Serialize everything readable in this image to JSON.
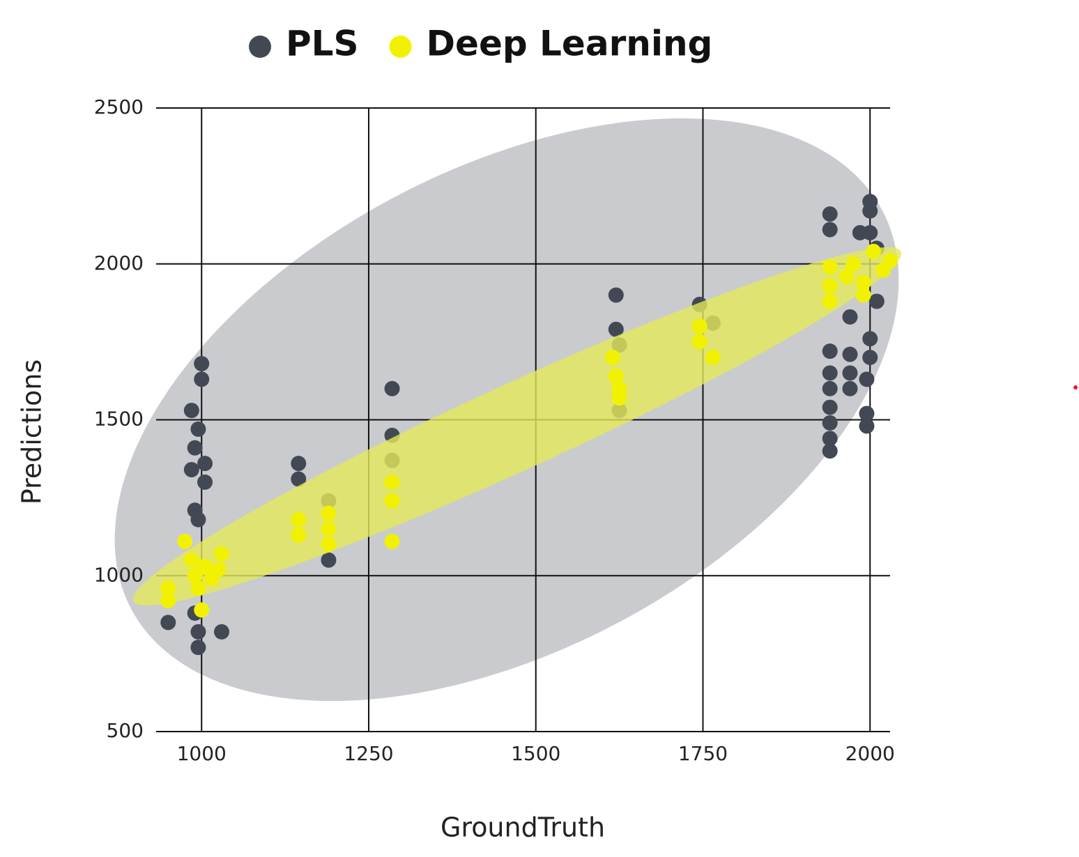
{
  "chart_data": {
    "type": "scatter",
    "x_label": "GroundTruth",
    "y_label": "Predictions",
    "xlim": [
      932,
      2030
    ],
    "ylim": [
      500,
      2500
    ],
    "xticks": [
      1000,
      1250,
      1500,
      1750,
      2000
    ],
    "yticks": [
      500,
      1000,
      1500,
      2000,
      2500
    ],
    "grid": true,
    "legend": "top",
    "series": [
      {
        "name": "PLS",
        "color": "#424955",
        "x": [
          1000,
          1000,
          985,
          995,
          990,
          1005,
          985,
          1005,
          990,
          995,
          990,
          995,
          995,
          1030,
          950,
          1145,
          1145,
          1190,
          1190,
          1285,
          1285,
          1285,
          1620,
          1620,
          1625,
          1625,
          1745,
          1745,
          1765,
          1940,
          1940,
          1940,
          1940,
          1940,
          1940,
          1940,
          1940,
          1940,
          1970,
          1970,
          1970,
          1970,
          1995,
          1995,
          1995,
          2000,
          2000,
          2000,
          2000,
          2000,
          2010,
          1985,
          2010
        ],
        "values": [
          1680,
          1630,
          1530,
          1470,
          1410,
          1360,
          1340,
          1300,
          1210,
          1180,
          880,
          820,
          770,
          820,
          850,
          1360,
          1310,
          1240,
          1050,
          1600,
          1450,
          1370,
          1900,
          1790,
          1740,
          1530,
          1870,
          1800,
          1810,
          2160,
          2110,
          1720,
          1650,
          1600,
          1540,
          1490,
          1440,
          1400,
          1710,
          1650,
          1600,
          1830,
          1630,
          1520,
          1480,
          2200,
          2170,
          2100,
          1760,
          1700,
          1880,
          2100,
          2050
        ]
      },
      {
        "name": "Deep Learning",
        "color": "#f2f200",
        "x": [
          950,
          950,
          975,
          985,
          990,
          995,
          1000,
          1005,
          1015,
          1025,
          1030,
          1145,
          1145,
          1190,
          1190,
          1190,
          1285,
          1285,
          1285,
          1615,
          1620,
          1625,
          1625,
          1745,
          1745,
          1765,
          1940,
          1940,
          1940,
          1965,
          1975,
          1990,
          2005,
          2020,
          2030,
          1990
        ],
        "values": [
          960,
          920,
          1110,
          1050,
          1000,
          960,
          890,
          1030,
          990,
          1020,
          1070,
          1180,
          1130,
          1200,
          1150,
          1100,
          1300,
          1240,
          1110,
          1700,
          1640,
          1600,
          1570,
          1800,
          1750,
          1700,
          1990,
          1930,
          1880,
          1960,
          2000,
          1940,
          2040,
          1980,
          2010,
          1900
        ]
      }
    ]
  }
}
